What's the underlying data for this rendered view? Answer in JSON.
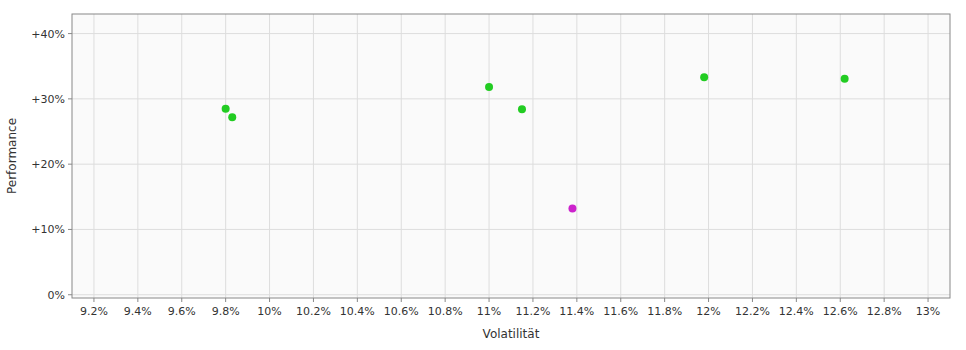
{
  "chart_data": {
    "type": "scatter",
    "xlabel": "Volatilität",
    "ylabel": "Performance",
    "xlim": [
      0.091,
      0.131
    ],
    "ylim": [
      -0.005,
      0.43
    ],
    "xticks": [
      {
        "value": 0.092,
        "label": "9.2%"
      },
      {
        "value": 0.094,
        "label": "9.4%"
      },
      {
        "value": 0.096,
        "label": "9.6%"
      },
      {
        "value": 0.098,
        "label": "9.8%"
      },
      {
        "value": 0.1,
        "label": "10%"
      },
      {
        "value": 0.102,
        "label": "10.2%"
      },
      {
        "value": 0.104,
        "label": "10.4%"
      },
      {
        "value": 0.106,
        "label": "10.6%"
      },
      {
        "value": 0.108,
        "label": "10.8%"
      },
      {
        "value": 0.11,
        "label": "11%"
      },
      {
        "value": 0.112,
        "label": "11.2%"
      },
      {
        "value": 0.114,
        "label": "11.4%"
      },
      {
        "value": 0.116,
        "label": "11.6%"
      },
      {
        "value": 0.118,
        "label": "11.8%"
      },
      {
        "value": 0.12,
        "label": "12%"
      },
      {
        "value": 0.122,
        "label": "12.2%"
      },
      {
        "value": 0.124,
        "label": "12.4%"
      },
      {
        "value": 0.126,
        "label": "12.6%"
      },
      {
        "value": 0.128,
        "label": "12.8%"
      },
      {
        "value": 0.13,
        "label": "13%"
      }
    ],
    "yticks": [
      {
        "value": 0.0,
        "label": "0%"
      },
      {
        "value": 0.1,
        "label": "+10%"
      },
      {
        "value": 0.2,
        "label": "+20%"
      },
      {
        "value": 0.3,
        "label": "+30%"
      },
      {
        "value": 0.4,
        "label": "+40%"
      }
    ],
    "grid": true,
    "series": [
      {
        "color": "#22cc22",
        "x": [
          0.098,
          0.0983,
          0.11,
          0.1115,
          0.1198,
          0.1262
        ],
        "values": [
          0.285,
          0.272,
          0.318,
          0.284,
          0.333,
          0.331
        ]
      },
      {
        "color": "#cc22cc",
        "x": [
          0.1138
        ],
        "values": [
          0.132
        ]
      }
    ]
  }
}
